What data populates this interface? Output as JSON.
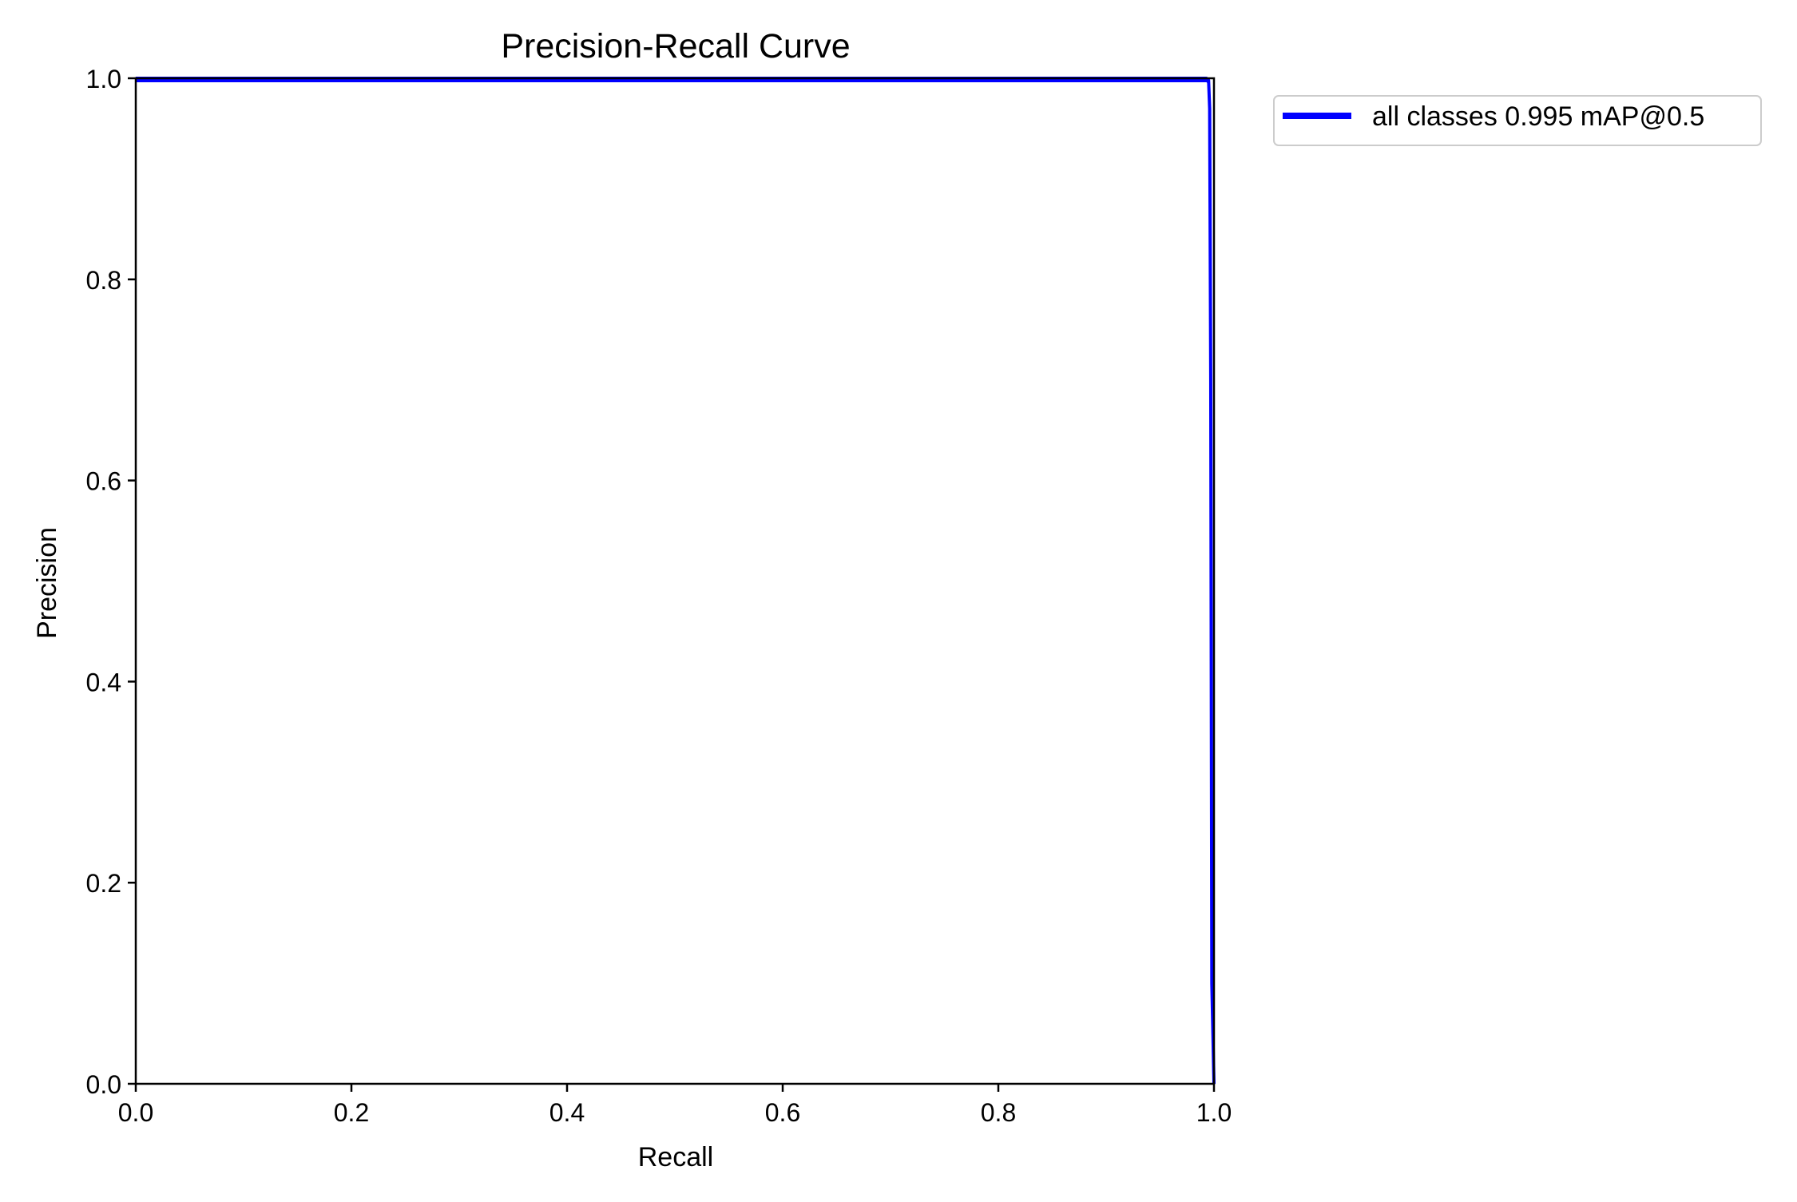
{
  "chart_data": {
    "type": "line",
    "title": "Precision-Recall Curve",
    "xlabel": "Recall",
    "ylabel": "Precision",
    "xlim": [
      0.0,
      1.0
    ],
    "ylim": [
      0.0,
      1.0
    ],
    "xticks": [
      0.0,
      0.2,
      0.4,
      0.6,
      0.8,
      1.0
    ],
    "yticks": [
      0.0,
      0.2,
      0.4,
      0.6,
      0.8,
      1.0
    ],
    "xtick_labels": [
      "0.0",
      "0.2",
      "0.4",
      "0.6",
      "0.8",
      "1.0"
    ],
    "ytick_labels": [
      "0.0",
      "0.2",
      "0.4",
      "0.6",
      "0.8",
      "1.0"
    ],
    "grid": false,
    "legend_position": "outside-top-right",
    "series": [
      {
        "name": "all classes 0.995 mAP@0.5",
        "color": "#0000ff",
        "x": [
          0.0,
          0.5,
          0.99,
          0.993,
          0.995,
          0.996,
          0.997,
          0.998,
          1.0
        ],
        "y": [
          1.0,
          1.0,
          1.0,
          1.0,
          0.998,
          0.97,
          0.7,
          0.1,
          0.0
        ]
      }
    ]
  }
}
